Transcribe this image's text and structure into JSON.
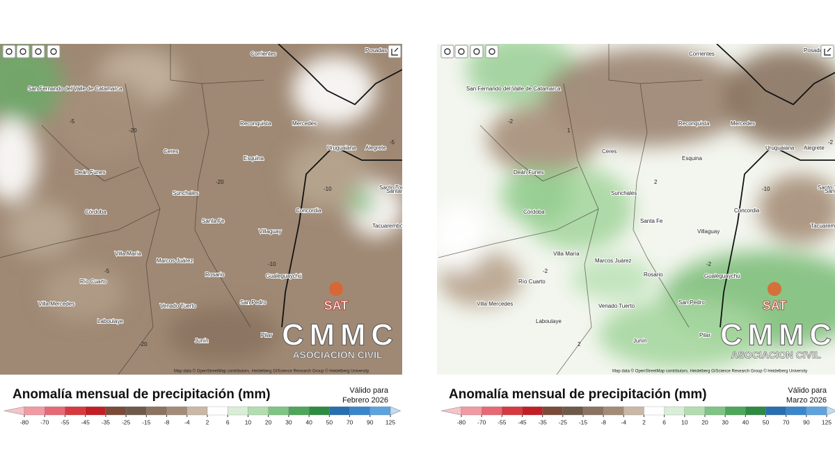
{
  "map_labels": [
    "Reconquista",
    "Mercedes",
    "Esquina",
    "Sunchales",
    "Santa Fe",
    "Villaguay",
    "Concordia",
    "Rosario",
    "Marcos Juárez",
    "Villa María",
    "Río Cuarto",
    "Córdoba",
    "Villa Mercedes",
    "Venado Tuerto",
    "Laboulaye",
    "San Pedro",
    "Gualeguaychú",
    "Uruguaiana",
    "Alegrete",
    "Deán Funes",
    "Ceres",
    "Junín",
    "Pilar",
    "Corrientes",
    "Posadas",
    "Santo Tomé",
    "Tacuarembó",
    "Santana do Livramento",
    "San Fernando del Valle de Catamarca"
  ],
  "colorbar": {
    "ticks": [
      -80,
      -70,
      -55,
      -45,
      -35,
      -25,
      -15,
      -8,
      -4,
      2,
      6,
      10,
      20,
      30,
      40,
      50,
      70,
      90,
      125
    ],
    "colors": [
      "#f6c3c9",
      "#f09aa3",
      "#e56a76",
      "#d63a40",
      "#c21f24",
      "#7b4b3a",
      "#6e5a4a",
      "#8a7360",
      "#a38c77",
      "#c9b8a6",
      "#ffffff",
      "#d9eed6",
      "#b3ddb0",
      "#7fc484",
      "#4ea65a",
      "#2f8a42",
      "#2a6eb0",
      "#3a86cc",
      "#5ea3dd",
      "#bfdcf4"
    ]
  },
  "panels": [
    {
      "contour_labels": [
        -5,
        -5,
        -10,
        -20,
        -20,
        -5,
        -10,
        -20
      ],
      "logo": {
        "sat": "SAT",
        "name": "CMMC",
        "tag": "ASOCIACION CIVIL"
      },
      "attribution": "Map data © OpenStreetMap contributors, Heidelberg GIScience Research Group © Heidelberg University",
      "title": "Anomalía mensual de precipitación (mm)",
      "valid_label": "Válido para",
      "valid_period": "Febrero 2026"
    },
    {
      "contour_labels": [
        -2,
        -2,
        -10,
        1,
        2,
        -2,
        -2,
        2
      ],
      "logo": {
        "sat": "SAT",
        "name": "CMMC",
        "tag": "ASOCIACION CIVIL"
      },
      "attribution": "Map data © OpenStreetMap contributors, Heidelberg GIScience Research Group © Heidelberg University",
      "title": "Anomalía mensual de precipitación (mm)",
      "valid_label": "Válido para",
      "valid_period": "Marzo 2026"
    }
  ]
}
